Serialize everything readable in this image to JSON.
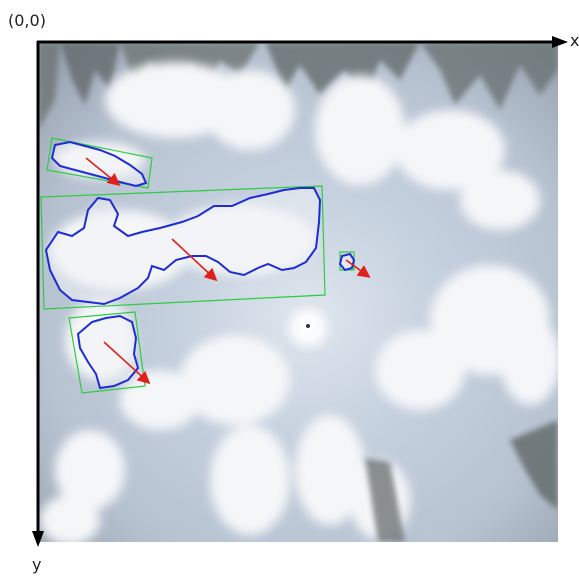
{
  "labels": {
    "origin": "(0,0)",
    "x_axis": "x",
    "y_axis": "y"
  },
  "colors": {
    "axis": "#000000",
    "bounding_box": "#2ecc40",
    "cloud_contour": "#1f2bd6",
    "motion_arrow": "#e0201a",
    "sky_center": "#c9d4e2",
    "sky_edge": "#aeb8c8"
  },
  "icons": [
    "cloud-contour",
    "motion-arrow",
    "bounding-box",
    "sun-glare"
  ],
  "cloud_segments": [
    {
      "name": "cloud-segment-top-left"
    },
    {
      "name": "cloud-segment-large"
    },
    {
      "name": "cloud-segment-bottom-left"
    },
    {
      "name": "cloud-segment-small"
    }
  ]
}
